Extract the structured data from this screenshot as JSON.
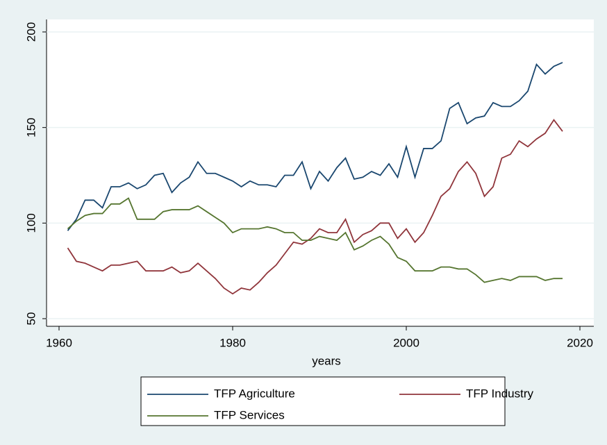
{
  "chart_data": {
    "type": "line",
    "x": [
      1961,
      1962,
      1963,
      1964,
      1965,
      1966,
      1967,
      1968,
      1969,
      1970,
      1971,
      1972,
      1973,
      1974,
      1975,
      1976,
      1977,
      1978,
      1979,
      1980,
      1981,
      1982,
      1983,
      1984,
      1985,
      1986,
      1987,
      1988,
      1989,
      1990,
      1991,
      1992,
      1993,
      1994,
      1995,
      1996,
      1997,
      1998,
      1999,
      2000,
      2001,
      2002,
      2003,
      2004,
      2005,
      2006,
      2007,
      2008,
      2009,
      2010,
      2011,
      2012,
      2013,
      2014,
      2015,
      2016,
      2017,
      2018
    ],
    "series": [
      {
        "name": "TFP Agriculture",
        "color": "#1a476f",
        "values": [
          96,
          102,
          112,
          112,
          108,
          119,
          119,
          121,
          118,
          120,
          125,
          126,
          116,
          121,
          124,
          132,
          126,
          126,
          124,
          122,
          119,
          122,
          120,
          120,
          119,
          125,
          125,
          132,
          118,
          127,
          122,
          129,
          134,
          123,
          124,
          127,
          125,
          131,
          124,
          140,
          124,
          139,
          139,
          143,
          160,
          163,
          152,
          155,
          156,
          163,
          161,
          161,
          164,
          169,
          183,
          178,
          182,
          184
        ]
      },
      {
        "name": "TFP Industry",
        "color": "#90353b",
        "values": [
          87,
          80,
          79,
          77,
          75,
          78,
          78,
          79,
          80,
          75,
          75,
          75,
          77,
          74,
          75,
          79,
          75,
          71,
          66,
          63,
          66,
          65,
          69,
          74,
          78,
          84,
          90,
          89,
          92,
          97,
          95,
          95,
          102,
          90,
          94,
          96,
          100,
          100,
          92,
          97,
          90,
          95,
          104,
          114,
          118,
          127,
          132,
          126,
          114,
          119,
          134,
          136,
          143,
          140,
          144,
          147,
          154,
          148
        ]
      },
      {
        "name": "TFP Services",
        "color": "#55752f",
        "values": [
          97,
          101,
          104,
          105,
          105,
          110,
          110,
          113,
          102,
          102,
          102,
          106,
          107,
          107,
          107,
          109,
          106,
          103,
          100,
          95,
          97,
          97,
          97,
          98,
          97,
          95,
          95,
          91,
          91,
          93,
          92,
          91,
          95,
          86,
          88,
          91,
          93,
          89,
          82,
          80,
          75,
          75,
          75,
          77,
          77,
          76,
          76,
          73,
          69,
          70,
          71,
          70,
          72,
          72,
          72,
          70,
          71,
          71
        ]
      }
    ],
    "xlabel": "years",
    "xlim": [
      1960,
      2020
    ],
    "xticks": [
      1960,
      1980,
      2000,
      2020
    ],
    "ylim": [
      50,
      200
    ],
    "yticks": [
      50,
      100,
      150,
      200
    ],
    "grid": true,
    "legend": "bottom"
  }
}
